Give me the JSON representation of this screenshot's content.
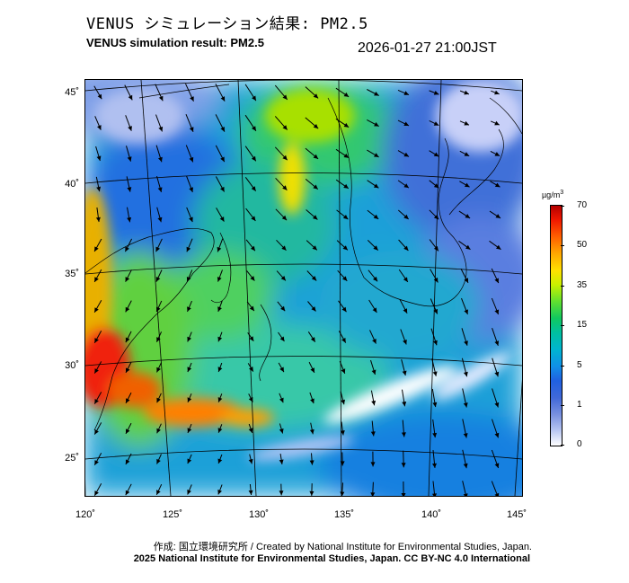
{
  "header": {
    "title_jp": "VENUS シミュレーション結果: PM2.5",
    "title_en": "VENUS simulation result: PM2.5",
    "timestamp": "2026-01-27 21:00JST"
  },
  "map": {
    "lat_labels": [
      "45˚",
      "40˚",
      "35˚",
      "30˚",
      "25˚"
    ],
    "lon_labels": [
      "120˚",
      "125˚",
      "130˚",
      "135˚",
      "140˚",
      "145˚"
    ],
    "extent": {
      "lon": [
        120,
        145
      ],
      "lat": [
        23,
        46
      ]
    }
  },
  "colorbar": {
    "unit": "µg/m",
    "unit_sup": "3",
    "ticks": [
      "70",
      "50",
      "35",
      "15",
      "5",
      "1",
      "0"
    ]
  },
  "footer": {
    "credit_line1": "作成: 国立環境研究所 / Created by National Institute for Environmental Studies, Japan.",
    "credit_line2": "2025 National Institute for Environmental Studies, Japan. CC BY-NC 4.0 International"
  },
  "colors": {
    "high": "#f01800",
    "mid": "#10c860",
    "low": "#2060e0",
    "clean": "#ffffff"
  }
}
